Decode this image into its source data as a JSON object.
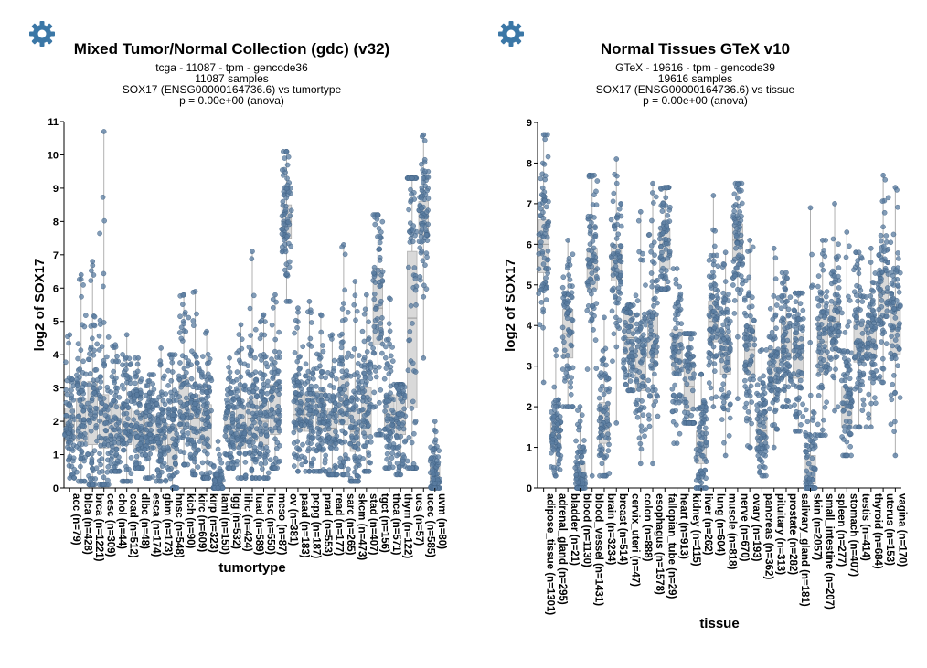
{
  "colors": {
    "point": "#5a7ca0",
    "point_stroke": "#3f5f82",
    "box": "#d9d9d9",
    "box_stroke": "#b0b0b0",
    "gear": "#3b77a6"
  },
  "icons": {
    "left": "gear-icon",
    "right": "gear-icon"
  },
  "chart_data": [
    {
      "type": "box",
      "title": "Mixed Tumor/Normal Collection (gdc) (v32)",
      "subtitle_lines": [
        "tcga - 11087 - tpm - gencode36",
        "11087 samples",
        "SOX17 (ENSG00000164736.6) vs tumortype",
        "p = 0.00e+00 (anova)"
      ],
      "xlabel": "tumortype",
      "ylabel": "log2 of SOX17",
      "ylim": [
        0,
        11
      ],
      "yticks": [
        0,
        1,
        2,
        3,
        4,
        5,
        6,
        7,
        8,
        9,
        10,
        11
      ],
      "categories": [
        "acc (n=79)",
        "blca (n=428)",
        "brca (n=1221)",
        "cesc (n=309)",
        "chol (n=44)",
        "coad (n=512)",
        "dlbc (n=48)",
        "esca (n=174)",
        "gbm (n=173)",
        "hnsc (n=548)",
        "kich (n=90)",
        "kirc (n=609)",
        "kirp (n=323)",
        "laml (n=150)",
        "lgg (n=532)",
        "lihc (n=424)",
        "luad (n=589)",
        "lusc (n=550)",
        "meso (n=87)",
        "ov (n=381)",
        "paad (n=183)",
        "pcpg (n=187)",
        "prad (n=553)",
        "read (n=177)",
        "sarc (n=265)",
        "skcm (n=473)",
        "stad (n=407)",
        "tgct (n=156)",
        "thca (n=571)",
        "thym (n=122)",
        "ucs (n=57)",
        "ucec (n=585)",
        "uvm (n=80)"
      ],
      "median": [
        1.9,
        2.0,
        2.2,
        2.0,
        1.8,
        1.9,
        1.7,
        1.7,
        1.6,
        1.3,
        2.4,
        2.1,
        1.8,
        0.1,
        1.9,
        1.8,
        2.1,
        2.0,
        2.4,
        8.0,
        2.2,
        2.2,
        2.3,
        1.8,
        2.6,
        1.7,
        2.3,
        5.4,
        2.2,
        2.2,
        5.1,
        8.1,
        0.4
      ],
      "q1": [
        1.4,
        1.4,
        1.3,
        1.2,
        1.2,
        1.3,
        1.2,
        1.2,
        1.1,
        0.6,
        1.8,
        1.5,
        1.2,
        0.0,
        1.5,
        1.2,
        1.4,
        1.3,
        1.6,
        7.5,
        1.7,
        1.7,
        1.8,
        1.3,
        1.9,
        1.1,
        1.6,
        4.3,
        1.7,
        1.6,
        2.4,
        7.6,
        0.2
      ],
      "q3": [
        2.4,
        2.7,
        3.2,
        2.8,
        2.5,
        2.4,
        2.3,
        2.2,
        2.1,
        1.9,
        3.3,
        2.8,
        2.5,
        0.3,
        2.3,
        2.4,
        2.7,
        2.6,
        3.1,
        8.5,
        2.8,
        2.8,
        2.9,
        2.4,
        3.3,
        2.4,
        3.0,
        6.6,
        2.8,
        2.8,
        7.1,
        8.6,
        0.7
      ],
      "min": [
        0.3,
        0.2,
        0.1,
        0.1,
        0.5,
        0.2,
        0.6,
        0.3,
        0.2,
        0.0,
        0.7,
        0.4,
        0.3,
        0.0,
        0.6,
        0.3,
        0.3,
        0.3,
        0.6,
        5.6,
        0.5,
        0.5,
        0.5,
        0.4,
        0.4,
        0.2,
        0.5,
        1.6,
        0.6,
        0.4,
        0.6,
        3.9,
        0.0
      ],
      "max": [
        4.6,
        6.4,
        6.8,
        10.7,
        4.3,
        4.6,
        3.9,
        3.4,
        4.2,
        4.0,
        5.8,
        5.9,
        4.7,
        1.4,
        3.9,
        4.9,
        7.1,
        5.2,
        5.8,
        10.1,
        5.4,
        5.6,
        5.2,
        4.6,
        7.3,
        6.2,
        5.8,
        8.2,
        5.7,
        3.1,
        9.3,
        10.6,
        2.0
      ]
    },
    {
      "type": "box",
      "title": "Normal Tissues GTeX v10",
      "subtitle_lines": [
        "GTeX - 19616 - tpm - gencode39",
        "19616 samples",
        "SOX17 (ENSG00000164736.6) vs tissue",
        "p = 0.00e+00 (anova)"
      ],
      "xlabel": "tissue",
      "ylabel": "log2 of SOX17",
      "ylim": [
        0,
        9
      ],
      "yticks": [
        0,
        1,
        2,
        3,
        4,
        5,
        6,
        7,
        8,
        9
      ],
      "categories": [
        "adipose_tissue (n=1301)",
        "adrenal_gland (n=295)",
        "bladder (n=21)",
        "blood (n=1130)",
        "blood_vessel (n=1431)",
        "brain (n=3234)",
        "breast (n=514)",
        "cervix_uteri (n=47)",
        "colon (n=888)",
        "esophagus (n=1578)",
        "fallopian_tube (n=29)",
        "heart (n=913)",
        "kidney (n=115)",
        "liver (n=262)",
        "lung (n=604)",
        "muscle (n=818)",
        "nerve (n=670)",
        "ovary (n=193)",
        "pancreas (n=362)",
        "pituitary (n=313)",
        "prostate (n=282)",
        "salivary_gland (n=181)",
        "skin (n=2057)",
        "small_intestine (n=207)",
        "spleen (n=277)",
        "stomach (n=407)",
        "testis (n=414)",
        "thyroid (n=684)",
        "uterus (n=153)",
        "vagina (n=170)"
      ],
      "median": [
        6.0,
        1.3,
        3.8,
        0.3,
        5.4,
        1.5,
        5.6,
        3.7,
        3.0,
        3.8,
        6.0,
        3.4,
        2.5,
        1.0,
        4.1,
        3.3,
        6.1,
        3.4,
        1.4,
        3.0,
        3.6,
        3.2,
        0.4,
        3.6,
        4.1,
        2.0,
        3.6,
        3.6,
        4.8,
        3.9
      ],
      "q1": [
        5.3,
        1.0,
        3.2,
        0.1,
        4.9,
        1.1,
        5.1,
        3.3,
        2.4,
        3.2,
        5.4,
        2.9,
        1.9,
        0.6,
        3.6,
        2.8,
        5.6,
        2.8,
        1.0,
        2.6,
        3.2,
        2.7,
        0.1,
        2.8,
        3.7,
        1.5,
        3.1,
        3.2,
        4.2,
        3.3
      ],
      "q3": [
        6.6,
        1.6,
        4.4,
        0.6,
        5.9,
        2.1,
        6.0,
        4.3,
        3.5,
        4.3,
        6.4,
        3.9,
        3.1,
        1.4,
        4.6,
        3.8,
        6.5,
        4.0,
        1.8,
        3.4,
        4.1,
        3.8,
        0.8,
        4.2,
        4.5,
        2.5,
        4.1,
        4.1,
        5.3,
        4.5
      ],
      "min": [
        2.6,
        0.3,
        2.0,
        0.0,
        0.3,
        0.3,
        1.6,
        2.4,
        0.6,
        0.6,
        4.9,
        1.1,
        1.6,
        0.0,
        2.0,
        0.8,
        2.2,
        1.0,
        0.3,
        1.0,
        2.0,
        1.4,
        0.0,
        1.3,
        1.9,
        0.8,
        1.5,
        1.5,
        2.6,
        0.8
      ],
      "max": [
        8.7,
        3.4,
        6.1,
        2.0,
        7.7,
        4.2,
        8.1,
        4.5,
        6.8,
        7.5,
        7.4,
        5.4,
        3.8,
        2.8,
        7.2,
        5.8,
        7.5,
        6.1,
        3.4,
        5.9,
        5.3,
        4.8,
        6.9,
        6.1,
        7.0,
        6.3,
        5.8,
        5.9,
        7.7,
        7.4
      ]
    }
  ]
}
